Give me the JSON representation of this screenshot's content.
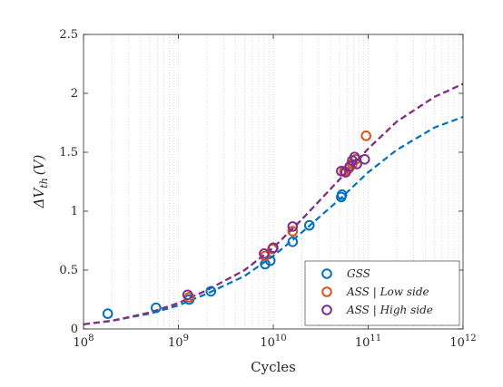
{
  "chart_data": {
    "type": "scatter",
    "xlabel": "Cycles",
    "ylabel": "ΔV_th (V)",
    "ylabel_parts": {
      "delta": "ΔV",
      "sub": "th",
      "unit": "(V)"
    },
    "xscale": "log",
    "xlim": [
      100000000,
      1000000000000
    ],
    "ylim": [
      0,
      2.5
    ],
    "x_ticks": [
      {
        "value": 100000000,
        "base": "10",
        "exp": "8"
      },
      {
        "value": 1000000000,
        "base": "10",
        "exp": "9"
      },
      {
        "value": 10000000000,
        "base": "10",
        "exp": "10"
      },
      {
        "value": 100000000000,
        "base": "10",
        "exp": "11"
      },
      {
        "value": 1000000000000,
        "base": "10",
        "exp": "12"
      }
    ],
    "y_ticks": [
      {
        "value": 0,
        "label": "0"
      },
      {
        "value": 0.5,
        "label": "0.5"
      },
      {
        "value": 1,
        "label": "1"
      },
      {
        "value": 1.5,
        "label": "1.5"
      },
      {
        "value": 2,
        "label": "2"
      },
      {
        "value": 2.5,
        "label": "2.5"
      }
    ],
    "grid": "x-minor-dotted",
    "legend_position": "bottom-right",
    "series": [
      {
        "name": "GSS",
        "color": "#0072BD",
        "marker": "circle-open",
        "points": [
          [
            180000000,
            0.13
          ],
          [
            580000000,
            0.18
          ],
          [
            1300000000,
            0.25
          ],
          [
            2200000000,
            0.32
          ],
          [
            8200000000,
            0.55
          ],
          [
            9300000000,
            0.58
          ],
          [
            16000000000,
            0.74
          ],
          [
            24000000000,
            0.88
          ],
          [
            52000000000,
            1.12
          ],
          [
            53000000000,
            1.14
          ]
        ],
        "fit": [
          [
            100000000,
            0.04
          ],
          [
            200000000,
            0.07
          ],
          [
            500000000,
            0.13
          ],
          [
            1000000000,
            0.2
          ],
          [
            2000000000,
            0.3
          ],
          [
            5000000000,
            0.45
          ],
          [
            10000000000,
            0.62
          ],
          [
            20000000000,
            0.82
          ],
          [
            50000000000,
            1.1
          ],
          [
            100000000000,
            1.33
          ],
          [
            200000000000,
            1.52
          ],
          [
            500000000000,
            1.71
          ],
          [
            1000000000000,
            1.8
          ]
        ]
      },
      {
        "name": "ASS | Low side",
        "color": "#D95319",
        "marker": "circle-open",
        "points": [
          [
            1300000000,
            0.27
          ],
          [
            8200000000,
            0.62
          ],
          [
            9800000000,
            0.68
          ],
          [
            16000000000,
            0.83
          ],
          [
            56000000000,
            1.34
          ],
          [
            62000000000,
            1.36
          ],
          [
            68000000000,
            1.4
          ],
          [
            74000000000,
            1.44
          ],
          [
            95000000000,
            1.64
          ]
        ],
        "fit": [
          [
            100000000,
            0.04
          ],
          [
            200000000,
            0.07
          ],
          [
            500000000,
            0.14
          ],
          [
            1000000000,
            0.22
          ],
          [
            2000000000,
            0.33
          ],
          [
            5000000000,
            0.5
          ],
          [
            10000000000,
            0.69
          ],
          [
            20000000000,
            0.93
          ],
          [
            50000000000,
            1.27
          ],
          [
            100000000000,
            1.53
          ],
          [
            200000000000,
            1.76
          ],
          [
            500000000000,
            1.97
          ],
          [
            1000000000000,
            2.08
          ]
        ]
      },
      {
        "name": "ASS | High side",
        "color": "#7E2F8E",
        "marker": "circle-open",
        "points": [
          [
            1250000000,
            0.29
          ],
          [
            8000000000,
            0.64
          ],
          [
            10000000000,
            0.69
          ],
          [
            16000000000,
            0.87
          ],
          [
            52000000000,
            1.34
          ],
          [
            58000000000,
            1.33
          ],
          [
            64000000000,
            1.38
          ],
          [
            68000000000,
            1.43
          ],
          [
            72000000000,
            1.46
          ],
          [
            76000000000,
            1.4
          ],
          [
            92000000000,
            1.44
          ]
        ],
        "fit": [
          [
            100000000,
            0.04
          ],
          [
            200000000,
            0.07
          ],
          [
            500000000,
            0.14
          ],
          [
            1000000000,
            0.22
          ],
          [
            2000000000,
            0.33
          ],
          [
            5000000000,
            0.5
          ],
          [
            10000000000,
            0.69
          ],
          [
            20000000000,
            0.93
          ],
          [
            50000000000,
            1.27
          ],
          [
            100000000000,
            1.53
          ],
          [
            200000000000,
            1.76
          ],
          [
            500000000000,
            1.97
          ],
          [
            1000000000000,
            2.08
          ]
        ]
      }
    ],
    "legend": [
      {
        "label": "GSS",
        "color": "#0072BD"
      },
      {
        "label": "ASS | Low side",
        "color": "#D95319"
      },
      {
        "label": "ASS | High side",
        "color": "#7E2F8E"
      }
    ]
  }
}
